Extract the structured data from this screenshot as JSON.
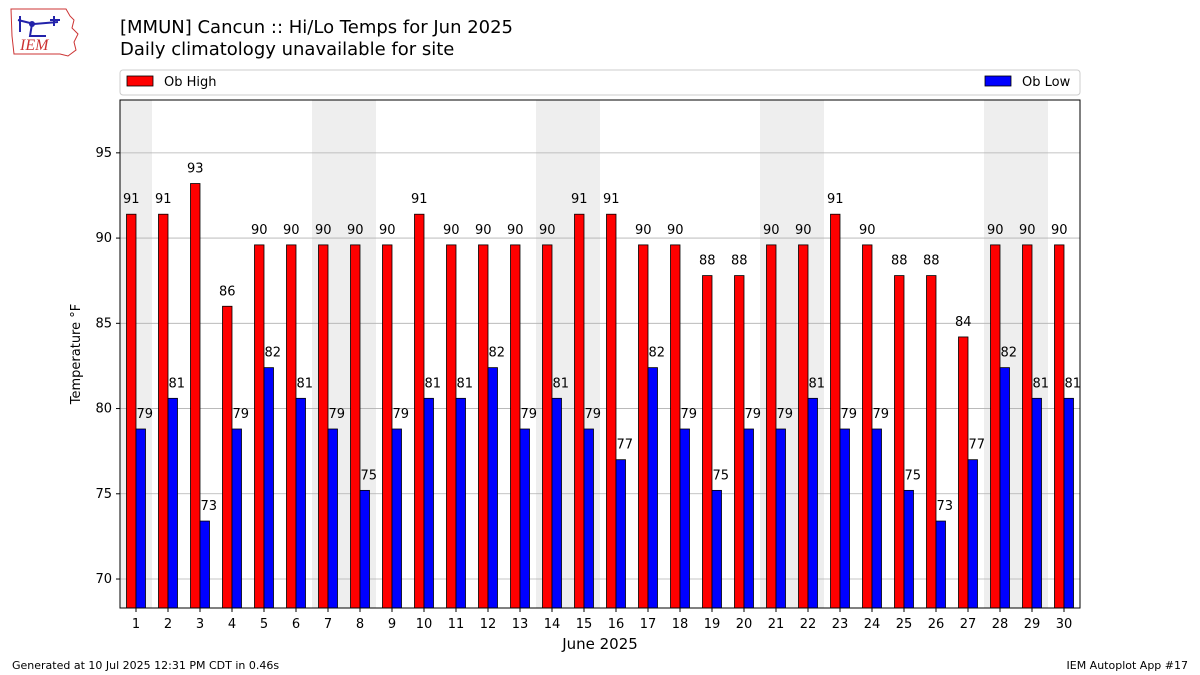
{
  "header": {
    "title": "[MMUN] Cancun :: Hi/Lo Temps for Jun 2025",
    "subtitle": "Daily climatology unavailable for site",
    "logo_text": "IEM"
  },
  "footer": {
    "generated": "Generated at 10 Jul 2025 12:31 PM CDT in 0.46s",
    "app": "IEM Autoplot App #17"
  },
  "chart_data": {
    "type": "bar",
    "xlabel": "June 2025",
    "ylabel": "Temperature °F",
    "ylim": [
      68.3,
      98.1
    ],
    "yticks": [
      70,
      75,
      80,
      85,
      90,
      95
    ],
    "grid": "horizontal",
    "legend_placement": "top, above plot",
    "weekend_shading": [
      1,
      7,
      8,
      14,
      15,
      21,
      22,
      28,
      29
    ],
    "categories": [
      "1",
      "2",
      "3",
      "4",
      "5",
      "6",
      "7",
      "8",
      "9",
      "10",
      "11",
      "12",
      "13",
      "14",
      "15",
      "16",
      "17",
      "18",
      "19",
      "20",
      "21",
      "22",
      "23",
      "24",
      "25",
      "26",
      "27",
      "28",
      "29",
      "30"
    ],
    "series": [
      {
        "name": "Ob High",
        "color": "#ff0000",
        "values": [
          91.4,
          91.4,
          93.2,
          86.0,
          89.6,
          89.6,
          89.6,
          89.6,
          89.6,
          91.4,
          89.6,
          89.6,
          89.6,
          89.6,
          91.4,
          91.4,
          89.6,
          89.6,
          87.8,
          87.8,
          89.6,
          89.6,
          91.4,
          89.6,
          87.8,
          87.8,
          84.2,
          89.6,
          89.6,
          89.6
        ],
        "labels": [
          "91",
          "91",
          "93",
          "86",
          "90",
          "90",
          "90",
          "90",
          "90",
          "91",
          "90",
          "90",
          "90",
          "90",
          "91",
          "91",
          "90",
          "90",
          "88",
          "88",
          "90",
          "90",
          "91",
          "90",
          "88",
          "88",
          "84",
          "90",
          "90",
          "90"
        ]
      },
      {
        "name": "Ob Low",
        "color": "#0000ff",
        "values": [
          78.8,
          80.6,
          73.4,
          78.8,
          82.4,
          80.6,
          78.8,
          75.2,
          78.8,
          80.6,
          80.6,
          82.4,
          78.8,
          80.6,
          78.8,
          77.0,
          82.4,
          78.8,
          75.2,
          78.8,
          78.8,
          80.6,
          78.8,
          78.8,
          75.2,
          73.4,
          77.0,
          82.4,
          80.6,
          80.6
        ],
        "labels": [
          "79",
          "81",
          "73",
          "79",
          "82",
          "81",
          "79",
          "75",
          "79",
          "81",
          "81",
          "82",
          "79",
          "81",
          "79",
          "77",
          "82",
          "79",
          "75",
          "79",
          "79",
          "81",
          "79",
          "79",
          "75",
          "73",
          "77",
          "82",
          "81",
          "81"
        ]
      }
    ]
  }
}
